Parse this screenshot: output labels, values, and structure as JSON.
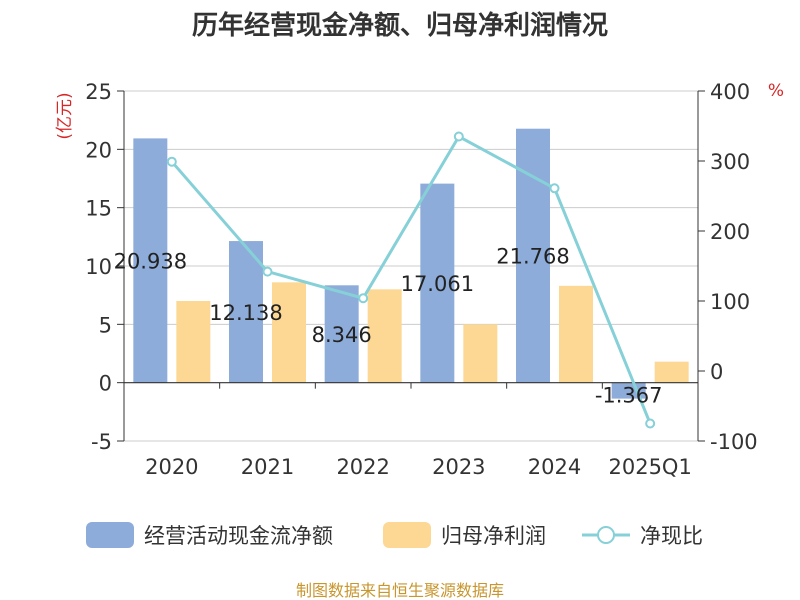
{
  "chart_data": {
    "type": "bar",
    "title": "历年经营现金净额、归母净利润情况",
    "categories": [
      "2020",
      "2021",
      "2022",
      "2023",
      "2024",
      "2025Q1"
    ],
    "series": [
      {
        "name": "经营活动现金流净额",
        "type": "bar",
        "axis": "left",
        "color": "#8eacd9",
        "values": [
          20.938,
          12.138,
          8.346,
          17.061,
          21.768,
          -1.367
        ],
        "labels": [
          "20.938",
          "12.138",
          "8.346",
          "17.061",
          "21.768",
          "-1.367"
        ]
      },
      {
        "name": "归母净利润",
        "type": "bar",
        "axis": "left",
        "color": "#fdd895",
        "values": [
          7.0,
          8.6,
          8.0,
          5.0,
          8.3,
          1.8
        ]
      },
      {
        "name": "净现比",
        "type": "line",
        "axis": "right",
        "color": "#86d0d8",
        "values": [
          299,
          142,
          104,
          335,
          261,
          -75
        ]
      }
    ],
    "y_left": {
      "label": "(亿元)",
      "ylim": [
        -5,
        25
      ],
      "ticks": [
        -5,
        0,
        5,
        10,
        15,
        20,
        25
      ],
      "label_color": "#d62728"
    },
    "y_right": {
      "label": "%",
      "ylim": [
        -100,
        400
      ],
      "ticks": [
        -100,
        0,
        100,
        200,
        300,
        400
      ],
      "label_color": "#d62728"
    },
    "grid": true,
    "legend_position": "bottom",
    "source": "制图数据来自恒生聚源数据库",
    "source_color": "#c8962e"
  }
}
